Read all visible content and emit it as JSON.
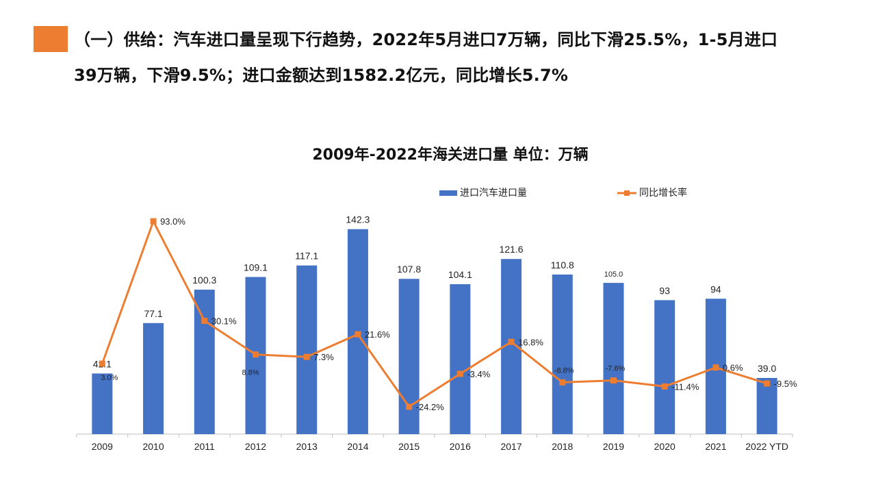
{
  "slide": {
    "heading_line1": "（一）供给：汽车进口量呈现下行趋势，2022年5月进口7万辆，同比下滑25.5%，1-5月进口",
    "heading_line2": "39万辆，下滑9.5%；进口金额达到1582.2亿元，同比增长5.7%",
    "accent_color": "#ED7D31"
  },
  "chart_data": {
    "type": "bar",
    "title": "2009年-2022年海关进口量  单位：万辆",
    "categories": [
      "2009",
      "2010",
      "2011",
      "2012",
      "2013",
      "2014",
      "2015",
      "2016",
      "2017",
      "2018",
      "2019",
      "2020",
      "2021",
      "2022 YTD"
    ],
    "legend_position": "top",
    "series": [
      {
        "name": "进口汽车进口量",
        "type": "bar",
        "color": "#4472C4",
        "values": [
          42.1,
          77.1,
          100.3,
          109.1,
          117.1,
          142.3,
          107.8,
          104.1,
          121.6,
          110.8,
          105.0,
          93,
          94,
          39.0
        ],
        "labels": [
          "42.1",
          "77.1",
          "100.3",
          "109.1",
          "117.1",
          "142.3",
          "107.8",
          "104.1",
          "121.6",
          "110.8",
          "105.0",
          "93",
          "94",
          "39.0"
        ]
      },
      {
        "name": "同比增长率",
        "type": "line",
        "color": "#ED7D31",
        "values": [
          3.0,
          93.0,
          30.1,
          8.8,
          7.3,
          21.6,
          -24.2,
          -3.4,
          16.8,
          -8.8,
          -7.6,
          -11.4,
          0.6,
          -9.5
        ],
        "labels": [
          "3.0%",
          "93.0%",
          "30.1%",
          "8.8%",
          "7.3%",
          "21.6%",
          "-24.2%",
          "-3.4%",
          "16.8%",
          "-8.8%",
          "-7.6%",
          "-11.4%",
          "0.6%",
          "-9.5%"
        ]
      }
    ],
    "ylim_left": [
      0,
      145
    ],
    "ylim_right": [
      -40,
      100
    ],
    "grid": false
  }
}
